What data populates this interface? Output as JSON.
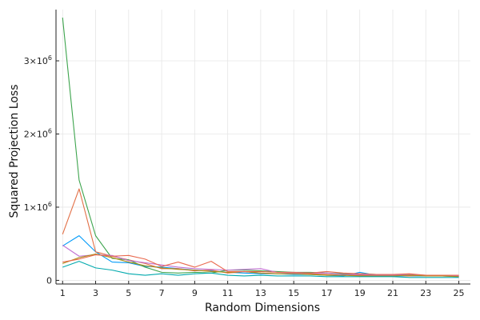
{
  "chart_data": {
    "type": "line",
    "xlabel": "Random Dimensions",
    "ylabel": "Squared Projection Loss",
    "xlim": [
      0.6,
      25.7
    ],
    "ylim": [
      -50000,
      3700000
    ],
    "grid": true,
    "legend": "none",
    "x_ticks": [
      1,
      3,
      5,
      7,
      9,
      11,
      13,
      15,
      17,
      19,
      21,
      23,
      25
    ],
    "y_ticks": [
      {
        "value": 0,
        "mantissa": "0",
        "exponent": ""
      },
      {
        "value": 1000000,
        "mantissa": "1×10",
        "exponent": "6"
      },
      {
        "value": 2000000,
        "mantissa": "2×10",
        "exponent": "6"
      },
      {
        "value": 3000000,
        "mantissa": "3×10",
        "exponent": "6"
      }
    ],
    "x": [
      1,
      2,
      3,
      4,
      5,
      6,
      7,
      8,
      9,
      10,
      11,
      12,
      13,
      14,
      15,
      16,
      17,
      18,
      19,
      20,
      21,
      22,
      23,
      24,
      25
    ],
    "series": [
      {
        "color": "#009af9",
        "values": [
          470000,
          610000,
          390000,
          250000,
          240000,
          190000,
          180000,
          160000,
          140000,
          130000,
          110000,
          100000,
          90000,
          90000,
          80000,
          80000,
          70000,
          60000,
          110000,
          70000,
          60000,
          60000,
          60000,
          60000,
          50000
        ]
      },
      {
        "color": "#e26f46",
        "values": [
          630000,
          1250000,
          390000,
          330000,
          280000,
          230000,
          160000,
          160000,
          130000,
          140000,
          100000,
          120000,
          100000,
          90000,
          90000,
          90000,
          80000,
          70000,
          70000,
          70000,
          70000,
          60000,
          70000,
          70000,
          50000
        ]
      },
      {
        "color": "#3da44d",
        "values": [
          3590000,
          1370000,
          610000,
          300000,
          280000,
          180000,
          110000,
          100000,
          110000,
          100000,
          140000,
          140000,
          130000,
          120000,
          110000,
          110000,
          100000,
          90000,
          90000,
          80000,
          80000,
          70000,
          70000,
          70000,
          60000
        ]
      },
      {
        "color": "#c271d2",
        "values": [
          480000,
          330000,
          350000,
          340000,
          270000,
          240000,
          210000,
          180000,
          160000,
          150000,
          140000,
          150000,
          160000,
          110000,
          100000,
          100000,
          100000,
          80000,
          80000,
          70000,
          70000,
          80000,
          70000,
          70000,
          60000
        ]
      },
      {
        "color": "#ac8d18",
        "values": [
          230000,
          310000,
          360000,
          310000,
          250000,
          200000,
          170000,
          150000,
          140000,
          120000,
          110000,
          120000,
          100000,
          90000,
          90000,
          80000,
          70000,
          70000,
          60000,
          60000,
          60000,
          70000,
          60000,
          60000,
          50000
        ]
      },
      {
        "color": "#e9694e",
        "values": [
          250000,
          290000,
          350000,
          330000,
          340000,
          290000,
          190000,
          250000,
          180000,
          260000,
          120000,
          120000,
          120000,
          110000,
          110000,
          100000,
          120000,
          100000,
          90000,
          80000,
          80000,
          90000,
          70000,
          70000,
          70000
        ]
      },
      {
        "color": "#00a9ad",
        "values": [
          180000,
          260000,
          170000,
          140000,
          90000,
          70000,
          90000,
          70000,
          90000,
          100000,
          70000,
          60000,
          70000,
          60000,
          60000,
          60000,
          50000,
          50000,
          50000,
          50000,
          50000,
          40000,
          40000,
          40000,
          40000
        ]
      }
    ]
  }
}
